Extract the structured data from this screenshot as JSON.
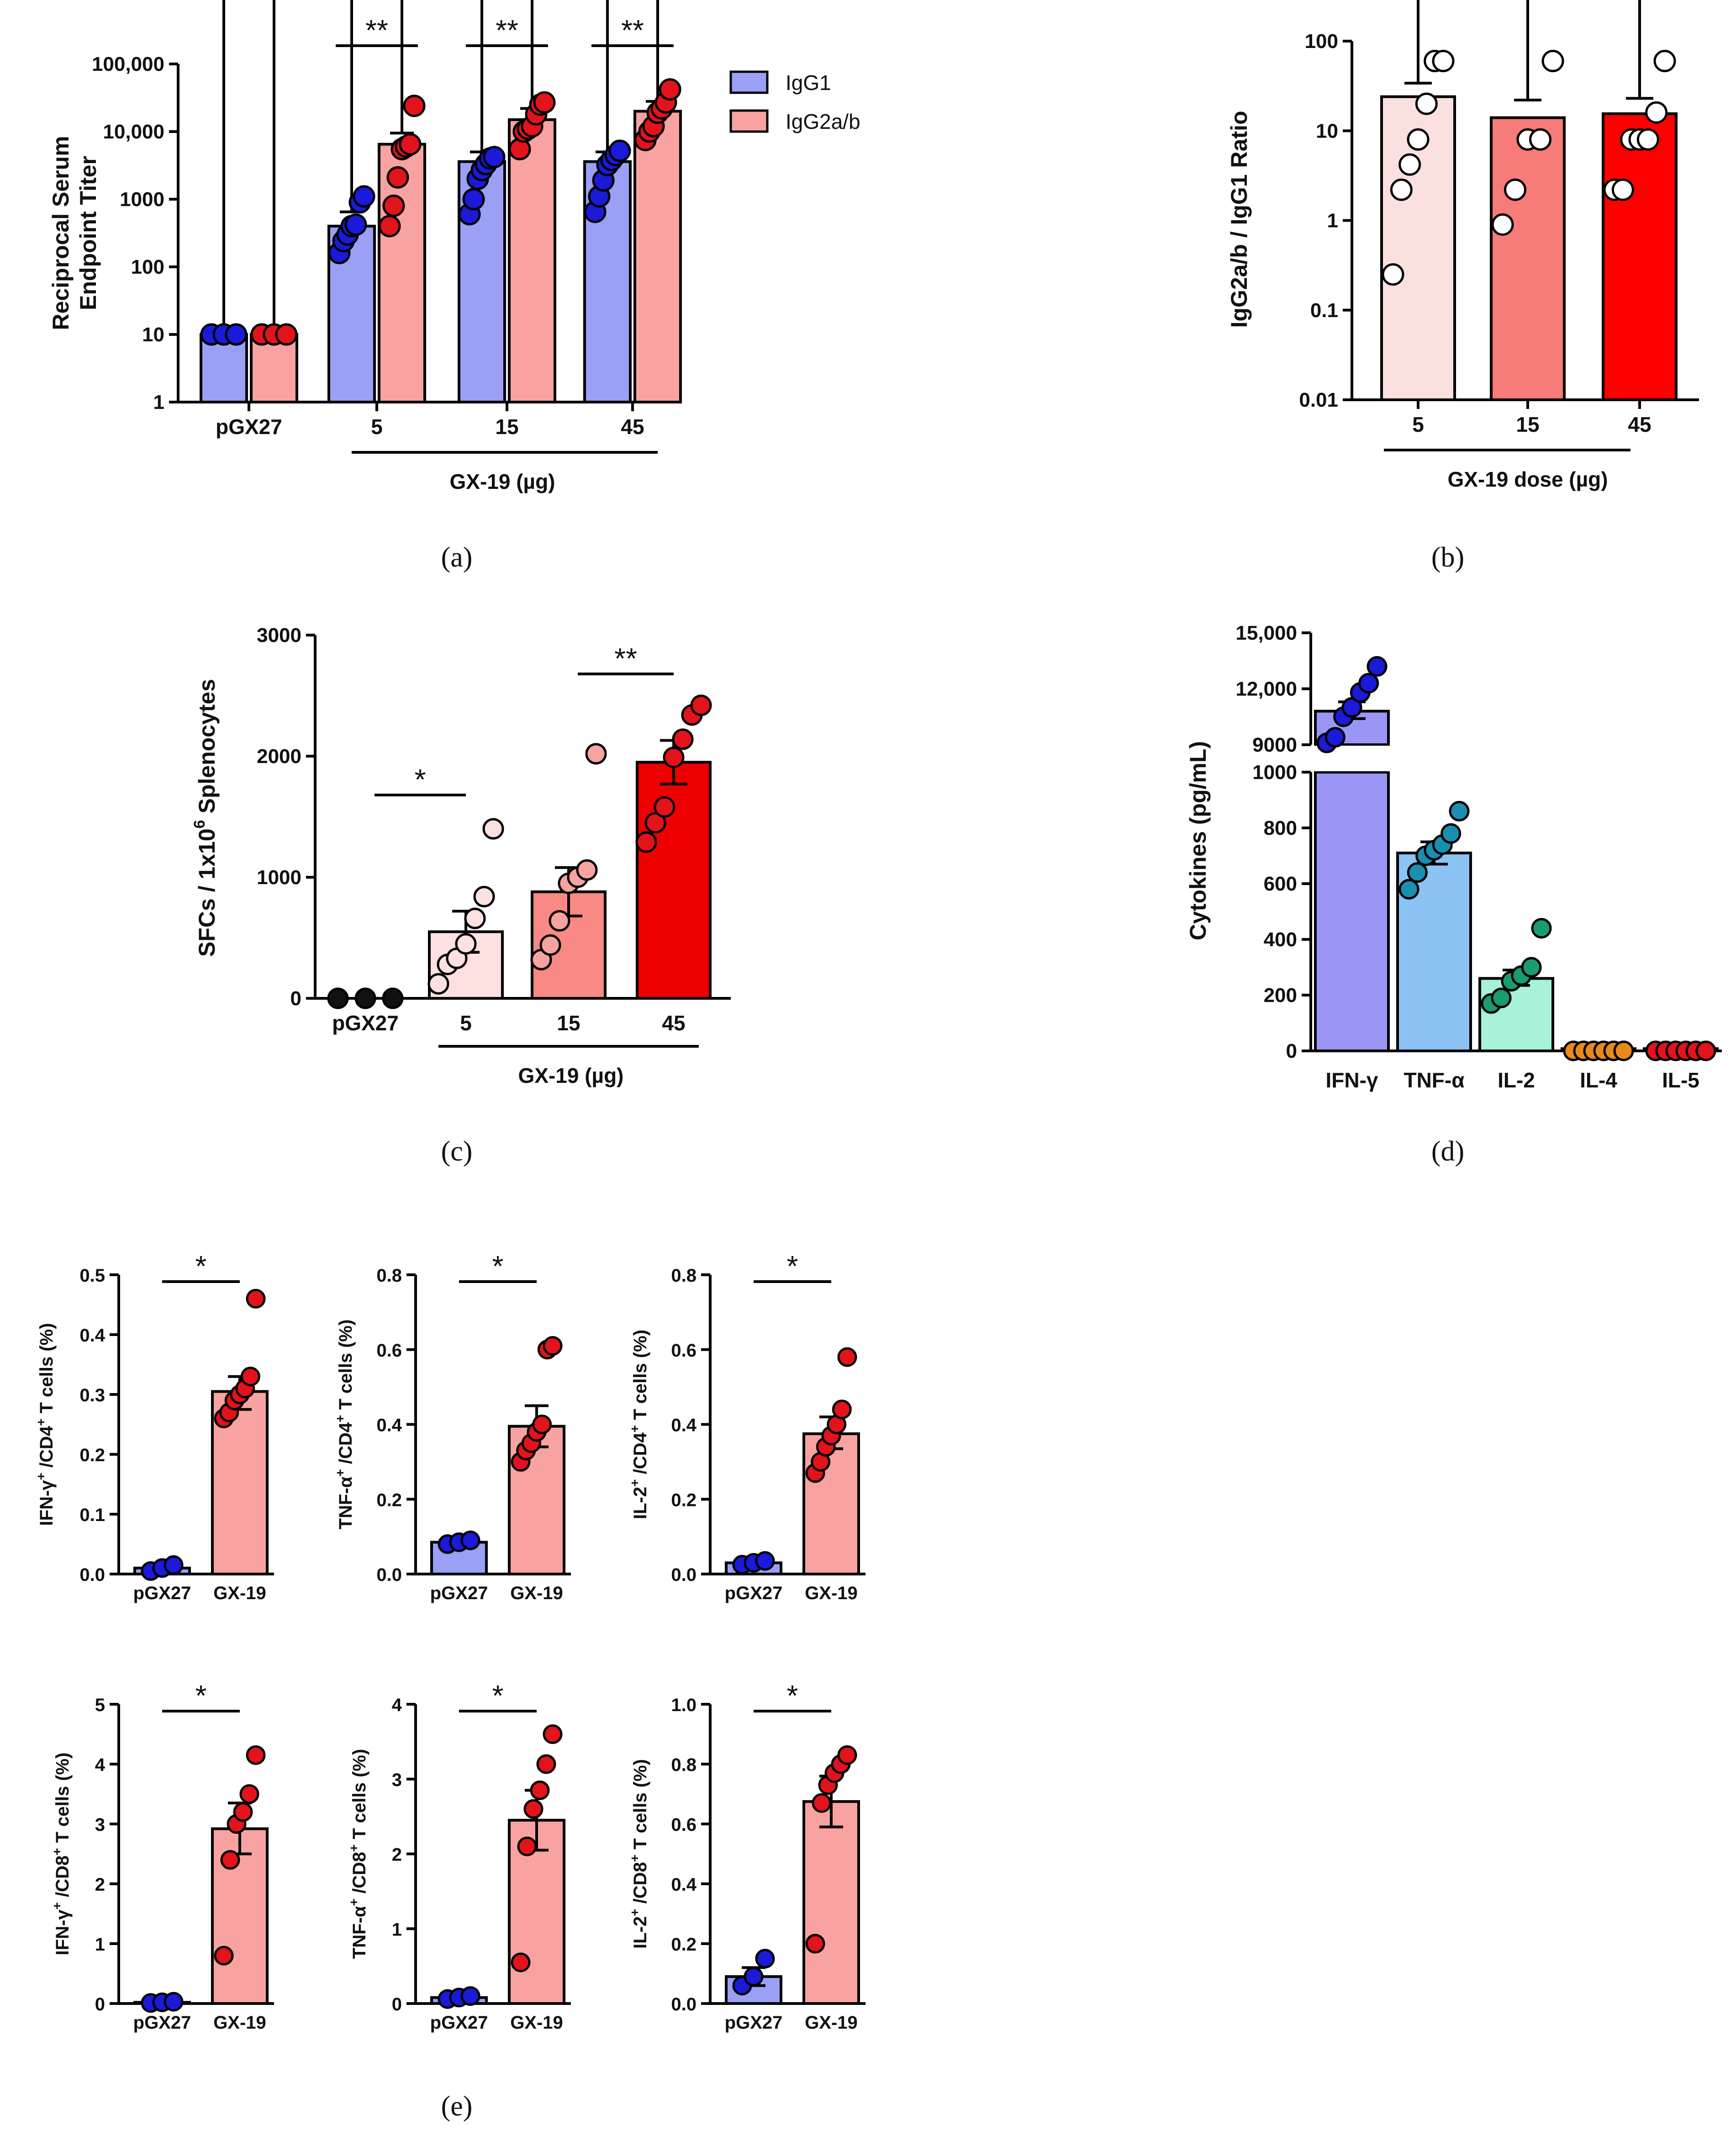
{
  "colors": {
    "igg1_bar": "#9aa0f5",
    "igg2_bar": "#f8a3a1",
    "blue_dot": "#1a1ad8",
    "red_dot": "#e3131b",
    "ratio_bars": [
      "#fbe0e0",
      "#f77b78",
      "#ff0000"
    ],
    "spot_bars": [
      "#ffffff",
      "#fde0e0",
      "#f88985",
      "#ee0000"
    ],
    "spot_dots": [
      "#111111",
      "#fde0e0",
      "#f7a3a0",
      "#e3131b"
    ],
    "cyto_bars": [
      "#9a96f6",
      "#8cc3f5",
      "#a7f2d8",
      "#f7c08a",
      "#f7a3a0"
    ],
    "cyto_dots": [
      "#1a1ad8",
      "#1a8fb0",
      "#1a9d6e",
      "#e88a1a",
      "#e3131b"
    ],
    "ics_bars": [
      "#9aa0f5",
      "#f8a3a1"
    ]
  },
  "panel_labels": {
    "a": "(a)",
    "b": "(b)",
    "c": "(c)",
    "d": "(d)",
    "e": "(e)"
  },
  "chart_data": [
    {
      "id": "a",
      "type": "bar",
      "scale": "log",
      "ylabel": [
        "Reciprocal Serum",
        "Endpoint Titer"
      ],
      "ylim": [
        1,
        100000
      ],
      "yticks": [
        1,
        10,
        100,
        1000,
        10000,
        100000
      ],
      "ytick_labels": [
        "1",
        "10",
        "100",
        "1000",
        "10,000",
        "100,000"
      ],
      "categories": [
        "pGX27",
        "5",
        "15",
        "45"
      ],
      "group_label": "GX-19 (µg)",
      "legend": [
        "IgG1",
        "IgG2a/b"
      ],
      "series": [
        {
          "name": "IgG1",
          "values": [
            10,
            400,
            3600,
            3600
          ],
          "sem_upper": [
            10,
            650,
            5000,
            5000
          ],
          "points": [
            [
              10,
              10,
              10
            ],
            [
              160,
              240,
              300,
              400,
              420,
              900,
              1100
            ],
            [
              600,
              1000,
              2000,
              2700,
              3300,
              4000,
              4200
            ],
            [
              650,
              1100,
              1900,
              3200,
              3800,
              4500,
              5200
            ]
          ]
        },
        {
          "name": "IgG2a/b",
          "values": [
            10,
            6500,
            15000,
            20000
          ],
          "sem_upper": [
            10,
            9500,
            22000,
            28000
          ],
          "points": [
            [
              10,
              10,
              10
            ],
            [
              400,
              800,
              2100,
              5500,
              6000,
              6500,
              24000
            ],
            [
              5500,
              10000,
              11000,
              12000,
              18000,
              25000,
              27000
            ],
            [
              7500,
              10000,
              12000,
              19000,
              22000,
              27000,
              42000
            ]
          ]
        }
      ],
      "significance": [
        {
          "between": [
            1,
            1
          ],
          "label": "**"
        },
        {
          "between": [
            2,
            2
          ],
          "label": "**"
        },
        {
          "between": [
            3,
            3
          ],
          "label": "**"
        }
      ]
    },
    {
      "id": "b",
      "type": "bar",
      "scale": "log",
      "ylabel": "IgG2a/b / IgG1 Ratio",
      "ylim": [
        0.01,
        100
      ],
      "yticks": [
        0.01,
        0.1,
        1,
        10,
        100
      ],
      "ytick_labels": [
        "0.01",
        "0.1",
        "1",
        "10",
        "100"
      ],
      "categories": [
        "5",
        "15",
        "45"
      ],
      "xlabel": "GX-19 dose (µg)",
      "values": [
        24,
        14,
        15.5
      ],
      "sem_upper": [
        34,
        22,
        23
      ],
      "points": [
        [
          0.25,
          2.2,
          4.2,
          8,
          20,
          60,
          60
        ],
        [
          0.9,
          2.2,
          8,
          8,
          60
        ],
        [
          2.2,
          2.2,
          8,
          8,
          8,
          16,
          60
        ]
      ]
    },
    {
      "id": "c",
      "type": "bar",
      "scale": "linear",
      "ylabel": "SFCs / 1x10<sup>6</sup> Splenocytes",
      "ylabel_text": "SFCs / 1x10",
      "ylabel_sup": "6",
      "ylabel_tail": " Splenocytes",
      "ylim": [
        0,
        3000
      ],
      "yticks": [
        0,
        1000,
        2000,
        3000
      ],
      "ytick_labels": [
        "0",
        "1000",
        "2000",
        "3000"
      ],
      "categories": [
        "pGX27",
        "5",
        "15",
        "45"
      ],
      "group_label": "GX-19 (µg)",
      "values": [
        0,
        550,
        880,
        1950
      ],
      "sem_upper": [
        0,
        720,
        1080,
        2130
      ],
      "sem_lower": [
        0,
        380,
        680,
        1770
      ],
      "points": [
        [
          0,
          0,
          0
        ],
        [
          120,
          280,
          330,
          450,
          660,
          840,
          1400
        ],
        [
          320,
          440,
          640,
          950,
          1000,
          1060,
          2020
        ],
        [
          1290,
          1450,
          1580,
          1990,
          2140,
          2340,
          2420
        ]
      ],
      "significance": [
        {
          "between": [
            0,
            1
          ],
          "label": "*"
        },
        {
          "between": [
            2,
            3
          ],
          "label": "**"
        }
      ]
    },
    {
      "id": "d",
      "type": "bar",
      "scale": "broken",
      "ylabel": "Cytokines (pg/mL)",
      "ylim_low": [
        0,
        1000
      ],
      "ylim_high": [
        9000,
        15000
      ],
      "yticks_low": [
        0,
        200,
        400,
        600,
        800,
        1000
      ],
      "ytick_labels_low": [
        "0",
        "200",
        "400",
        "600",
        "800",
        "1000"
      ],
      "yticks_high": [
        9000,
        12000,
        15000
      ],
      "ytick_labels_high": [
        "9000",
        "12,000",
        "15,000"
      ],
      "categories": [
        "IFN-γ",
        "TNF-α",
        "IL-2",
        "IL-4",
        "IL-5"
      ],
      "values": [
        10800,
        710,
        260,
        8,
        5
      ],
      "sem_upper": [
        11300,
        750,
        290,
        10,
        7
      ],
      "sem_lower": [
        10400,
        670,
        235,
        6,
        3
      ],
      "points": [
        [
          9100,
          9400,
          10500,
          11000,
          11800,
          12300,
          13200
        ],
        [
          580,
          640,
          700,
          720,
          740,
          780,
          860
        ],
        [
          170,
          190,
          250,
          270,
          300,
          440
        ],
        [
          0,
          0,
          0,
          0,
          0,
          0
        ],
        [
          0,
          0,
          0,
          0,
          0,
          0
        ]
      ]
    },
    {
      "id": "e1",
      "type": "bar",
      "scale": "linear",
      "ylabel_parts": [
        "IFN-γ",
        "+",
        " /CD4",
        "+",
        " T cells (%)"
      ],
      "ylim": [
        0,
        0.5
      ],
      "yticks": [
        0,
        0.1,
        0.2,
        0.3,
        0.4,
        0.5
      ],
      "ytick_labels": [
        "0.0",
        "0.1",
        "0.2",
        "0.3",
        "0.4",
        "0.5"
      ],
      "categories": [
        "pGX27",
        "GX-19"
      ],
      "values": [
        0.01,
        0.305
      ],
      "sem_upper": [
        0.015,
        0.33
      ],
      "sem_lower": [
        0.008,
        0.275
      ],
      "points": [
        [
          0.005,
          0.01,
          0.015
        ],
        [
          0.26,
          0.27,
          0.29,
          0.3,
          0.31,
          0.33,
          0.46
        ]
      ],
      "significance": [
        {
          "between": [
            0,
            1
          ],
          "label": "*"
        }
      ]
    },
    {
      "id": "e2",
      "type": "bar",
      "scale": "linear",
      "ylabel_parts": [
        "TNF-α",
        "+",
        " /CD4",
        "+",
        " T cells (%)"
      ],
      "ylim": [
        0,
        0.8
      ],
      "yticks": [
        0,
        0.2,
        0.4,
        0.6,
        0.8
      ],
      "ytick_labels": [
        "0.0",
        "0.2",
        "0.4",
        "0.6",
        "0.8"
      ],
      "categories": [
        "pGX27",
        "GX-19"
      ],
      "values": [
        0.085,
        0.395
      ],
      "sem_upper": [
        0.095,
        0.45
      ],
      "sem_lower": [
        0.08,
        0.34
      ],
      "points": [
        [
          0.08,
          0.085,
          0.09
        ],
        [
          0.3,
          0.33,
          0.35,
          0.38,
          0.4,
          0.6,
          0.61
        ]
      ],
      "significance": [
        {
          "between": [
            0,
            1
          ],
          "label": "*"
        }
      ]
    },
    {
      "id": "e3",
      "type": "bar",
      "scale": "linear",
      "ylabel_parts": [
        "IL-2",
        "+",
        " /CD4",
        "+",
        " T cells (%)"
      ],
      "ylim": [
        0,
        0.8
      ],
      "yticks": [
        0,
        0.2,
        0.4,
        0.6,
        0.8
      ],
      "ytick_labels": [
        "0.0",
        "0.2",
        "0.4",
        "0.6",
        "0.8"
      ],
      "categories": [
        "pGX27",
        "GX-19"
      ],
      "values": [
        0.03,
        0.375
      ],
      "sem_upper": [
        0.035,
        0.42
      ],
      "sem_lower": [
        0.025,
        0.335
      ],
      "points": [
        [
          0.025,
          0.03,
          0.035
        ],
        [
          0.27,
          0.3,
          0.34,
          0.37,
          0.4,
          0.44,
          0.58
        ]
      ],
      "significance": [
        {
          "between": [
            0,
            1
          ],
          "label": "*"
        }
      ]
    },
    {
      "id": "e4",
      "type": "bar",
      "scale": "linear",
      "ylabel_parts": [
        "IFN-γ",
        "+",
        " /CD8",
        "+",
        " T cells (%)"
      ],
      "ylim": [
        0,
        5
      ],
      "yticks": [
        0,
        1,
        2,
        3,
        4,
        5
      ],
      "ytick_labels": [
        "0",
        "1",
        "2",
        "3",
        "4",
        "5"
      ],
      "categories": [
        "pGX27",
        "GX-19"
      ],
      "values": [
        0.02,
        2.92
      ],
      "sem_upper": [
        0.03,
        3.35
      ],
      "sem_lower": [
        0.01,
        2.5
      ],
      "points": [
        [
          0.01,
          0.02,
          0.03
        ],
        [
          0.8,
          2.4,
          3.0,
          3.2,
          3.5,
          4.15
        ]
      ],
      "significance": [
        {
          "between": [
            0,
            1
          ],
          "label": "*"
        }
      ]
    },
    {
      "id": "e5",
      "type": "bar",
      "scale": "linear",
      "ylabel_parts": [
        "TNF-α",
        "+",
        " /CD8",
        "+",
        " T cells (%)"
      ],
      "ylim": [
        0,
        4
      ],
      "yticks": [
        0,
        1,
        2,
        3,
        4
      ],
      "ytick_labels": [
        "0",
        "1",
        "2",
        "3",
        "4"
      ],
      "categories": [
        "pGX27",
        "GX-19"
      ],
      "values": [
        0.08,
        2.45
      ],
      "sem_upper": [
        0.1,
        2.85
      ],
      "sem_lower": [
        0.06,
        2.05
      ],
      "points": [
        [
          0.06,
          0.08,
          0.1
        ],
        [
          0.55,
          2.1,
          2.6,
          2.85,
          3.2,
          3.6
        ]
      ],
      "significance": [
        {
          "between": [
            0,
            1
          ],
          "label": "*"
        }
      ]
    },
    {
      "id": "e6",
      "type": "bar",
      "scale": "linear",
      "ylabel_parts": [
        "IL-2",
        "+",
        " /CD8",
        "+",
        " T cells (%)"
      ],
      "ylim": [
        0,
        1.0
      ],
      "yticks": [
        0,
        0.2,
        0.4,
        0.6,
        0.8,
        1.0
      ],
      "ytick_labels": [
        "0.0",
        "0.2",
        "0.4",
        "0.6",
        "0.8",
        "1.0"
      ],
      "categories": [
        "pGX27",
        "GX-19"
      ],
      "values": [
        0.09,
        0.675
      ],
      "sem_upper": [
        0.12,
        0.76
      ],
      "sem_lower": [
        0.06,
        0.59
      ],
      "points": [
        [
          0.06,
          0.09,
          0.15
        ],
        [
          0.2,
          0.67,
          0.73,
          0.77,
          0.8,
          0.83
        ]
      ],
      "significance": [
        {
          "between": [
            0,
            1
          ],
          "label": "*"
        }
      ]
    }
  ]
}
